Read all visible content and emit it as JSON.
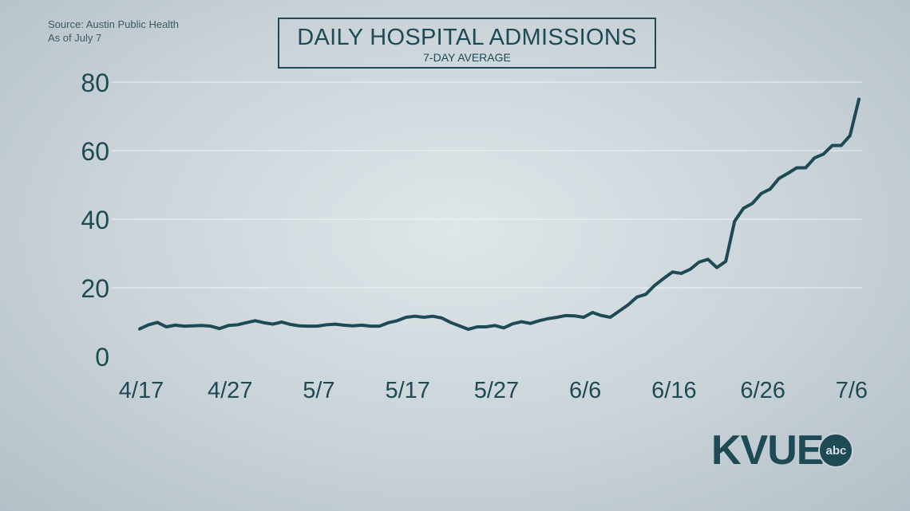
{
  "source": {
    "line1": "Source: Austin Public Health",
    "line2": "As of July 7"
  },
  "logo": {
    "text": "KVUE",
    "badge": "abc"
  },
  "colors": {
    "line": "#1e4a56",
    "grid": "#eef2f4",
    "text": "#1e4a56"
  },
  "chart_data": {
    "type": "line",
    "title": "DAILY HOSPITAL ADMISSIONS",
    "subtitle": "7-DAY AVERAGE",
    "xlabel": "",
    "ylabel": "",
    "ylim": [
      0,
      80
    ],
    "yticks": [
      0,
      20,
      40,
      60,
      80
    ],
    "xtick_labels": [
      "4/17",
      "4/27",
      "5/7",
      "5/17",
      "5/27",
      "6/6",
      "6/16",
      "6/26",
      "7/6"
    ],
    "grid": true,
    "x": [
      "4/17",
      "4/18",
      "4/19",
      "4/20",
      "4/21",
      "4/22",
      "4/23",
      "4/24",
      "4/25",
      "4/26",
      "4/27",
      "4/28",
      "4/29",
      "4/30",
      "5/1",
      "5/2",
      "5/3",
      "5/4",
      "5/5",
      "5/6",
      "5/7",
      "5/8",
      "5/9",
      "5/10",
      "5/11",
      "5/12",
      "5/13",
      "5/14",
      "5/15",
      "5/16",
      "5/17",
      "5/18",
      "5/19",
      "5/20",
      "5/21",
      "5/22",
      "5/23",
      "5/24",
      "5/25",
      "5/26",
      "5/27",
      "5/28",
      "5/29",
      "5/30",
      "5/31",
      "6/1",
      "6/2",
      "6/3",
      "6/4",
      "6/5",
      "6/6",
      "6/7",
      "6/8",
      "6/9",
      "6/10",
      "6/11",
      "6/12",
      "6/13",
      "6/14",
      "6/15",
      "6/16",
      "6/17",
      "6/18",
      "6/19",
      "6/20",
      "6/21",
      "6/22",
      "6/23",
      "6/24",
      "6/25",
      "6/26",
      "6/27",
      "6/28",
      "6/29",
      "6/30",
      "7/1",
      "7/2",
      "7/3",
      "7/4",
      "7/5",
      "7/6",
      "7/7"
    ],
    "values": [
      8.0,
      9.2,
      9.9,
      8.6,
      9.1,
      8.8,
      8.9,
      9.0,
      8.8,
      8.1,
      9.0,
      9.2,
      9.8,
      10.4,
      9.8,
      9.4,
      10.0,
      9.3,
      8.9,
      8.8,
      8.8,
      9.2,
      9.4,
      9.1,
      8.9,
      9.1,
      8.8,
      8.8,
      9.8,
      10.4,
      11.4,
      11.7,
      11.4,
      11.7,
      11.2,
      9.9,
      8.9,
      7.9,
      8.6,
      8.6,
      9.0,
      8.3,
      9.5,
      10.1,
      9.6,
      10.4,
      11.0,
      11.4,
      11.9,
      11.8,
      11.4,
      12.8,
      11.9,
      11.4,
      13.2,
      15.0,
      17.3,
      18.1,
      20.7,
      22.7,
      24.6,
      24.2,
      25.4,
      27.5,
      28.3,
      25.9,
      27.7,
      39.4,
      43.2,
      44.6,
      47.5,
      48.8,
      51.9,
      53.4,
      55.0,
      55.0,
      57.9,
      59.0,
      61.5,
      61.5,
      64.4,
      75.0
    ]
  }
}
